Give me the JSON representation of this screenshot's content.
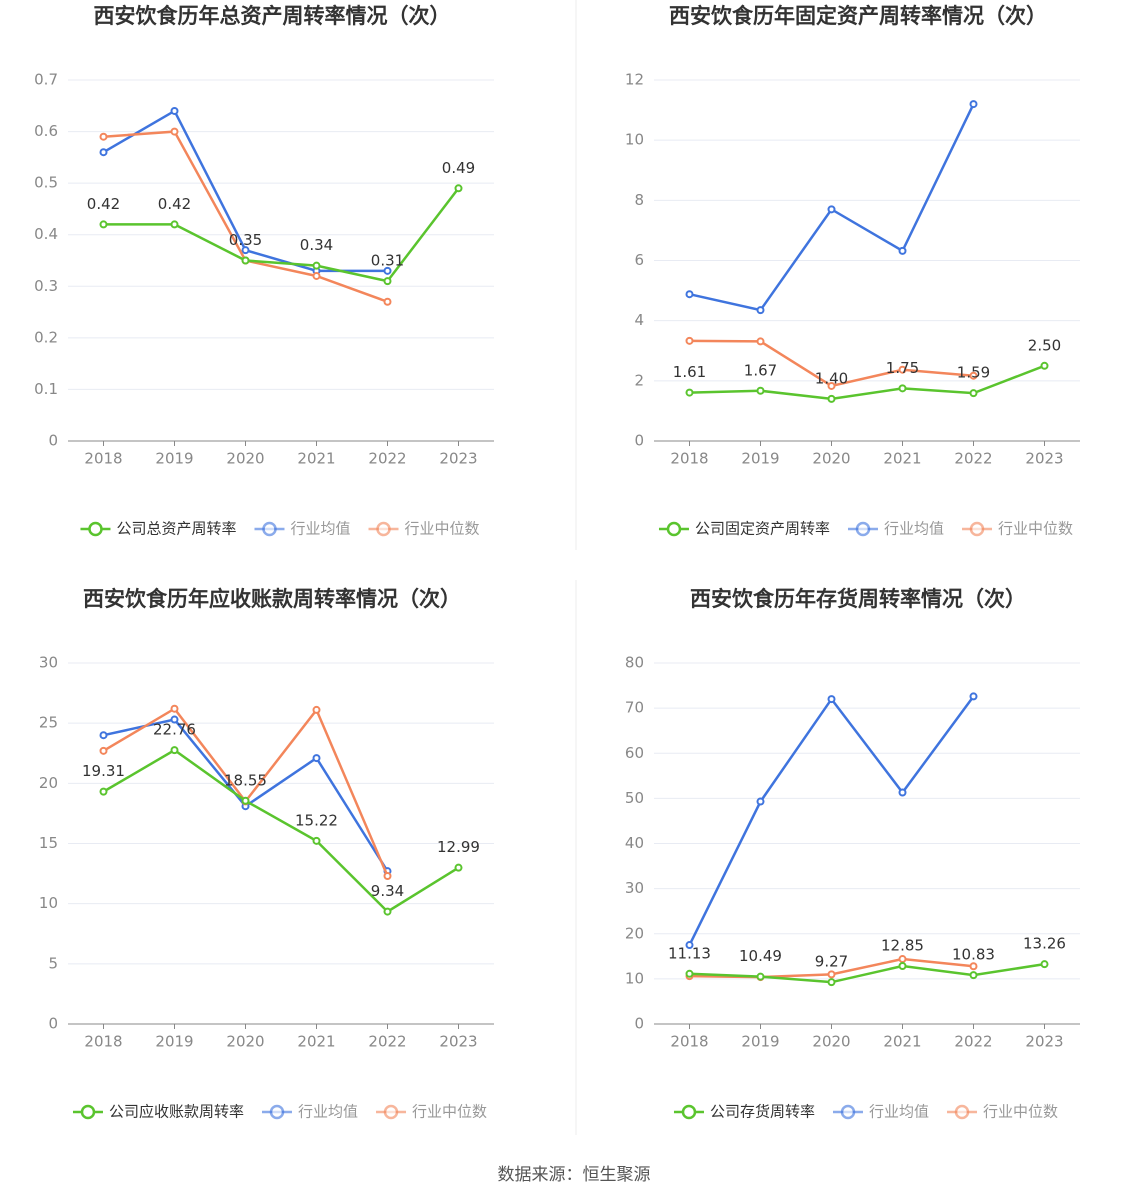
{
  "chart_data": [
    {
      "type": "line",
      "title": "西安饮食历年总资产周转率情况（次）",
      "categories": [
        "2018",
        "2019",
        "2020",
        "2021",
        "2022",
        "2023"
      ],
      "ylim": [
        0,
        0.7
      ],
      "yticks": [
        0,
        0.1,
        0.2,
        0.3,
        0.4,
        0.5,
        0.6,
        0.7
      ],
      "grid": true,
      "series": [
        {
          "name": "公司总资产周转率",
          "color": "#5ac42e",
          "values": [
            0.42,
            0.42,
            0.35,
            0.34,
            0.31,
            0.49
          ],
          "value_labels": [
            "0.42",
            "0.42",
            "0.35",
            "0.34",
            "0.31",
            "0.49"
          ]
        },
        {
          "name": "行业均值",
          "color": "#3f74de",
          "values": [
            0.56,
            0.64,
            0.37,
            0.33,
            0.33,
            null
          ]
        },
        {
          "name": "行业中位数",
          "color": "#f3865b",
          "values": [
            0.59,
            0.6,
            0.35,
            0.32,
            0.27,
            null
          ]
        }
      ]
    },
    {
      "type": "line",
      "title": "西安饮食历年固定资产周转率情况（次）",
      "categories": [
        "2018",
        "2019",
        "2020",
        "2021",
        "2022",
        "2023"
      ],
      "ylim": [
        0,
        12
      ],
      "yticks": [
        0,
        2,
        4,
        6,
        8,
        10,
        12
      ],
      "grid": true,
      "series": [
        {
          "name": "公司固定资产周转率",
          "color": "#5ac42e",
          "values": [
            1.61,
            1.67,
            1.4,
            1.75,
            1.59,
            2.5
          ],
          "value_labels": [
            "1.61",
            "1.67",
            "1.40",
            "1.75",
            "1.59",
            "2.50"
          ]
        },
        {
          "name": "行业均值",
          "color": "#3f74de",
          "values": [
            4.88,
            4.35,
            7.7,
            6.32,
            11.2,
            null
          ]
        },
        {
          "name": "行业中位数",
          "color": "#f3865b",
          "values": [
            3.33,
            3.31,
            1.83,
            2.37,
            2.17,
            null
          ]
        }
      ]
    },
    {
      "type": "line",
      "title": "西安饮食历年应收账款周转率情况（次）",
      "categories": [
        "2018",
        "2019",
        "2020",
        "2021",
        "2022",
        "2023"
      ],
      "ylim": [
        0,
        30
      ],
      "yticks": [
        0,
        5,
        10,
        15,
        20,
        25,
        30
      ],
      "grid": true,
      "series": [
        {
          "name": "公司应收账款周转率",
          "color": "#5ac42e",
          "values": [
            19.31,
            22.76,
            18.55,
            15.22,
            9.34,
            12.99
          ],
          "value_labels": [
            "19.31",
            "22.76",
            "18.55",
            "15.22",
            "9.34",
            "12.99"
          ]
        },
        {
          "name": "行业均值",
          "color": "#3f74de",
          "values": [
            24.0,
            25.3,
            18.1,
            22.1,
            12.7,
            null
          ]
        },
        {
          "name": "行业中位数",
          "color": "#f3865b",
          "values": [
            22.7,
            26.2,
            18.5,
            26.1,
            12.3,
            null
          ]
        }
      ]
    },
    {
      "type": "line",
      "title": "西安饮食历年存货周转率情况（次）",
      "categories": [
        "2018",
        "2019",
        "2020",
        "2021",
        "2022",
        "2023"
      ],
      "ylim": [
        0,
        80
      ],
      "yticks": [
        0,
        10,
        20,
        30,
        40,
        50,
        60,
        70,
        80
      ],
      "grid": true,
      "series": [
        {
          "name": "公司存货周转率",
          "color": "#5ac42e",
          "values": [
            11.13,
            10.49,
            9.27,
            12.85,
            10.83,
            13.26
          ],
          "value_labels": [
            "11.13",
            "10.49",
            "9.27",
            "12.85",
            "10.83",
            "13.26"
          ]
        },
        {
          "name": "行业均值",
          "color": "#3f74de",
          "values": [
            17.5,
            49.3,
            72.0,
            51.3,
            72.6,
            null
          ]
        },
        {
          "name": "行业中位数",
          "color": "#f3865b",
          "values": [
            10.6,
            10.4,
            11.0,
            14.4,
            12.8,
            null
          ]
        }
      ]
    }
  ],
  "source": "数据来源：恒生聚源"
}
